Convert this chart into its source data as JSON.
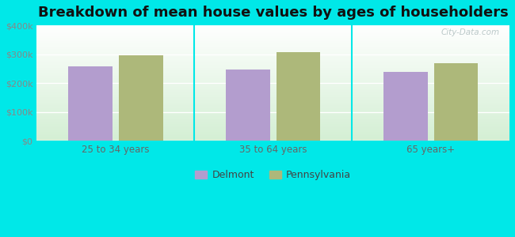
{
  "title": "Breakdown of mean house values by ages of householders",
  "categories": [
    "25 to 34 years",
    "35 to 64 years",
    "65 years+"
  ],
  "delmont_values": [
    258000,
    248000,
    240000
  ],
  "pennsylvania_values": [
    297000,
    308000,
    268000
  ],
  "delmont_color": "#b39dce",
  "pennsylvania_color": "#adb87a",
  "ylim": [
    0,
    400000
  ],
  "yticks": [
    0,
    100000,
    200000,
    300000,
    400000
  ],
  "ytick_labels": [
    "$0",
    "$100k",
    "$200k",
    "$300k",
    "$400k"
  ],
  "background_color": "#00e8e8",
  "legend_labels": [
    "Delmont",
    "Pennsylvania"
  ],
  "bar_width": 0.28,
  "title_fontsize": 13,
  "watermark": "City-Data.com"
}
